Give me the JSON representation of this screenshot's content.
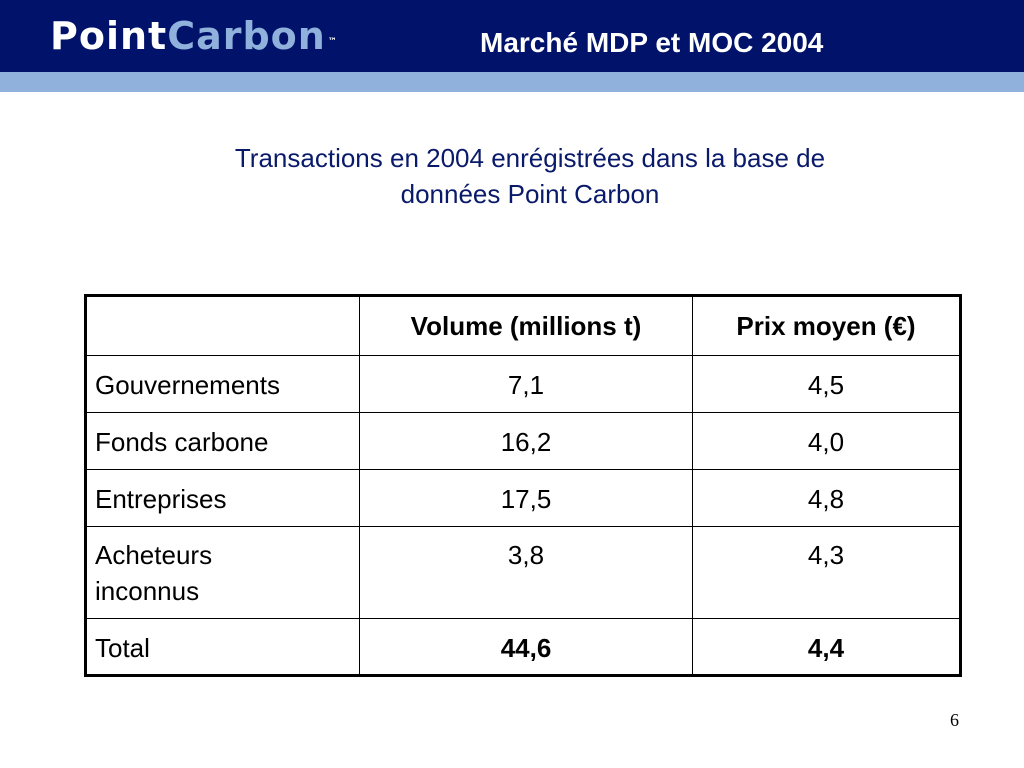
{
  "header": {
    "logo_main": "Point",
    "logo_accent": "Carbon",
    "logo_tm": "™",
    "title": "Marché MDP et MOC 2004"
  },
  "subtitle": {
    "line1": "Transactions en 2004 enrégistrées dans la base de",
    "line2": "données Point Carbon"
  },
  "table": {
    "headers": [
      "",
      "Volume (millions t)",
      "Prix moyen (€)"
    ],
    "rows": [
      {
        "label": "Gouvernements",
        "volume": "7,1",
        "price": "4,5"
      },
      {
        "label": "Fonds carbone",
        "volume": "16,2",
        "price": "4,0"
      },
      {
        "label": "Entreprises",
        "volume": "17,5",
        "price": "4,8"
      },
      {
        "label_line1": "Acheteurs",
        "label_line2": "inconnus",
        "volume": "3,8",
        "price": "4,3"
      },
      {
        "label": "Total",
        "volume": "44,6",
        "price": "4,4"
      }
    ]
  },
  "footer": {
    "page_number": "6"
  },
  "colors": {
    "header_bg": "#00126a",
    "header_stripe": "#8fb1dc",
    "subtitle_text": "#0a1a6a"
  }
}
